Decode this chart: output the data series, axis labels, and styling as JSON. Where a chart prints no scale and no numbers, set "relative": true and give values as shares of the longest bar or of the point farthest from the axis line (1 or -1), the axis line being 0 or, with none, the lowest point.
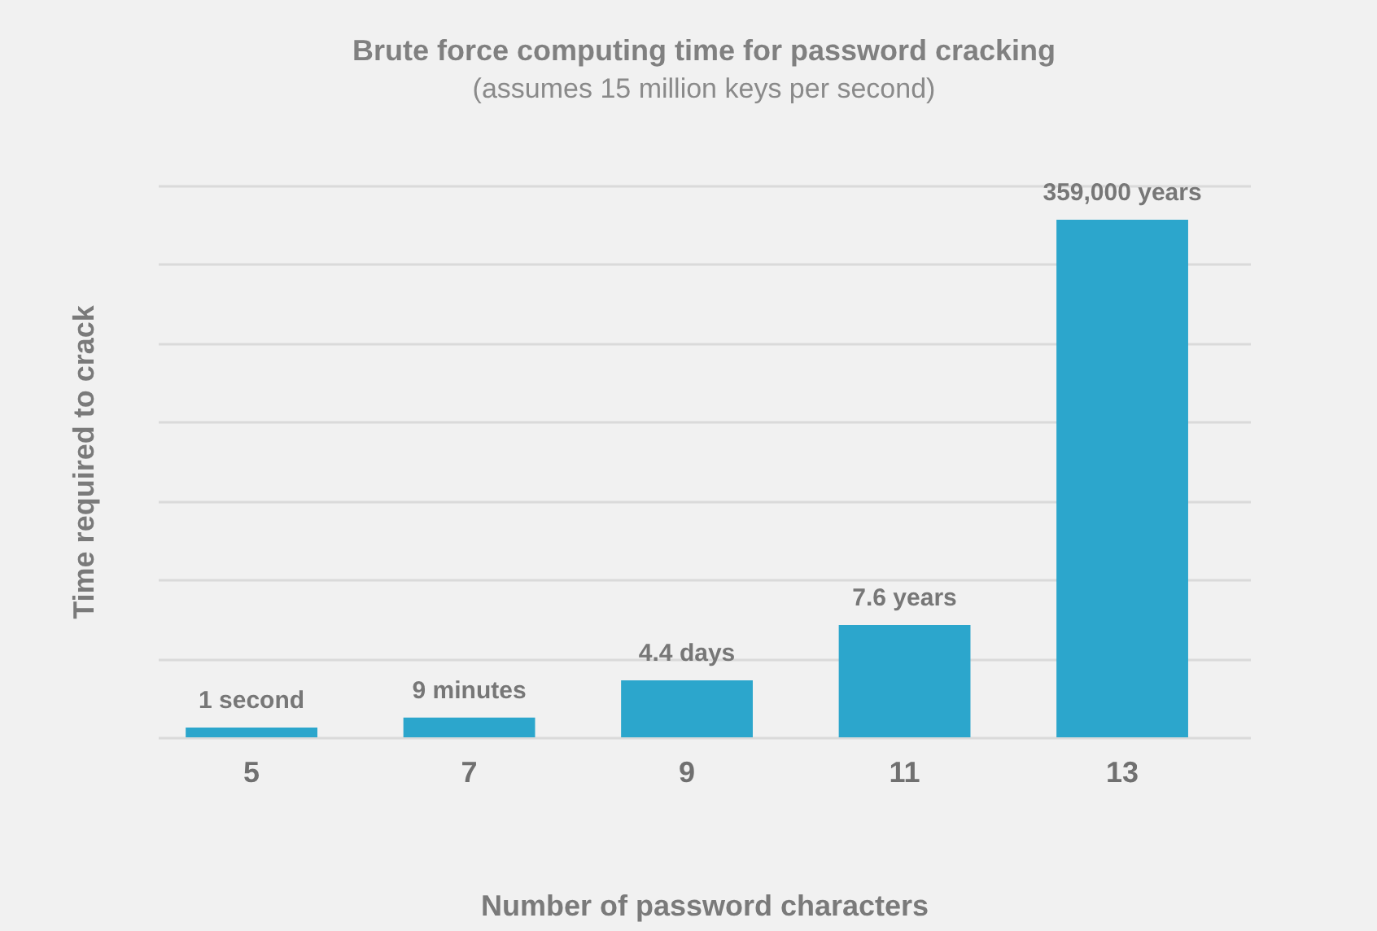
{
  "chart_data": {
    "type": "bar",
    "title": "Brute force computing time for password cracking",
    "subtitle": "(assumes 15 million keys per second)",
    "xlabel": "Number of password characters",
    "ylabel": "Time required to crack",
    "categories": [
      "5",
      "7",
      "9",
      "11",
      "13"
    ],
    "values": [
      0.019,
      0.038,
      0.11,
      0.217,
      1
    ],
    "annotations": [
      {
        "text": "1 second",
        "x": "5",
        "y": 0.019
      },
      {
        "text": "9 minutes",
        "x": "7",
        "y": 0.038
      },
      {
        "text": "4.4 days",
        "x": "9",
        "y": 0.11
      },
      {
        "text": "7.6 years",
        "x": "11",
        "y": 0.217
      },
      {
        "text": "359,000 years",
        "x": "13",
        "y": 1
      }
    ],
    "color": "#2ca6cc",
    "relative": true,
    "grid": "y",
    "tick_labels": "x"
  }
}
